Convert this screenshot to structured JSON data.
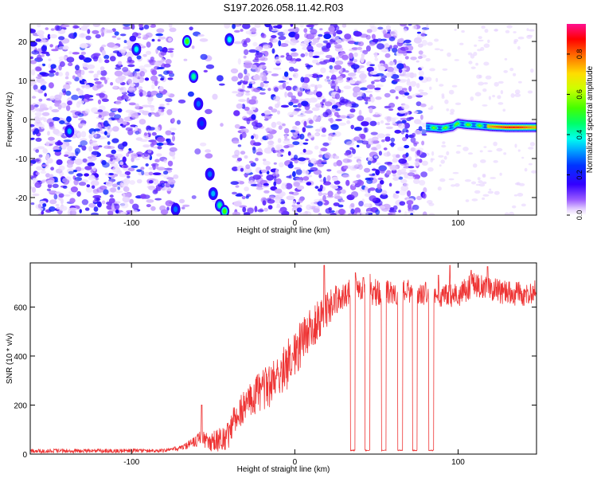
{
  "title": "S197.2026.058.11.42.R03",
  "chart_data": [
    {
      "type": "heatmap",
      "xlabel": "Height of straight line (km)",
      "ylabel": "Frequency (Hz)",
      "xlim": [
        -162,
        148
      ],
      "ylim": [
        -24.5,
        24.5
      ],
      "x_ticks": [
        -100,
        0,
        100
      ],
      "y_ticks": [
        -20,
        -10,
        0,
        10,
        20
      ],
      "x_tick_labels": [
        "-100",
        "0",
        "100"
      ],
      "y_tick_labels": [
        "-20",
        "-10",
        "0",
        "10",
        "20"
      ],
      "colorbar": {
        "label": "Normalized spectral amplitude",
        "range": [
          0,
          0.95
        ],
        "ticks": [
          0,
          0.2,
          0.4,
          0.6,
          0.8
        ],
        "tick_labels": [
          "0.0",
          "0.2",
          "0.4",
          "0.6",
          "0.8"
        ]
      },
      "blank_band_x": [
        -74,
        -37
      ],
      "slanted_streak": [
        {
          "x": -66,
          "y": 20,
          "v": 0.55
        },
        {
          "x": -62,
          "y": 11,
          "v": 0.45
        },
        {
          "x": -59,
          "y": 4,
          "v": 0.3
        },
        {
          "x": -57,
          "y": -1,
          "v": 0.25
        },
        {
          "x": -52,
          "y": -14,
          "v": 0.3
        },
        {
          "x": -50,
          "y": -19,
          "v": 0.35
        },
        {
          "x": -46,
          "y": -22,
          "v": 0.45
        },
        {
          "x": -43,
          "y": -23.5,
          "v": 0.55
        }
      ],
      "hotspots": [
        {
          "x": -97,
          "y": 18,
          "v": 0.4
        },
        {
          "x": -138,
          "y": -3,
          "v": 0.35
        },
        {
          "x": -40,
          "y": 20.5,
          "v": 0.4
        },
        {
          "x": -73,
          "y": -23,
          "v": 0.3
        }
      ],
      "tone_line": {
        "x_start": 80,
        "x_end": 148,
        "points": [
          {
            "x": 82,
            "y": -2
          },
          {
            "x": 90,
            "y": -2.3
          },
          {
            "x": 97,
            "y": -1.8
          },
          {
            "x": 100,
            "y": -1
          },
          {
            "x": 105,
            "y": -1.3
          },
          {
            "x": 112,
            "y": -1.5
          },
          {
            "x": 120,
            "y": -1.8
          },
          {
            "x": 130,
            "y": -2
          },
          {
            "x": 148,
            "y": -2
          }
        ],
        "peak_x_range": [
          118,
          148
        ],
        "peak_value": 0.9
      }
    },
    {
      "type": "line",
      "xlabel": "Height of straight line (km)",
      "ylabel": "SNR (10 * v/v)",
      "xlim": [
        -162,
        148
      ],
      "ylim": [
        0,
        780
      ],
      "x_ticks": [
        -100,
        0,
        100
      ],
      "y_ticks": [
        0,
        200,
        400,
        600
      ],
      "x_tick_labels": [
        "-100",
        "0",
        "100"
      ],
      "y_tick_labels": [
        "0",
        "200",
        "400",
        "600"
      ],
      "color": "#ee3333",
      "envelope": [
        {
          "x": -162,
          "y": 15
        },
        {
          "x": -80,
          "y": 15
        },
        {
          "x": -68,
          "y": 30
        },
        {
          "x": -58,
          "y": 70
        },
        {
          "x": -50,
          "y": 60
        },
        {
          "x": -42,
          "y": 70
        },
        {
          "x": -35,
          "y": 180
        },
        {
          "x": -25,
          "y": 250
        },
        {
          "x": -15,
          "y": 300
        },
        {
          "x": -5,
          "y": 380
        },
        {
          "x": 5,
          "y": 480
        },
        {
          "x": 15,
          "y": 570
        },
        {
          "x": 25,
          "y": 640
        },
        {
          "x": 35,
          "y": 680
        },
        {
          "x": 50,
          "y": 670
        },
        {
          "x": 70,
          "y": 670
        },
        {
          "x": 90,
          "y": 650
        },
        {
          "x": 100,
          "y": 660
        },
        {
          "x": 110,
          "y": 700
        },
        {
          "x": 120,
          "y": 680
        },
        {
          "x": 140,
          "y": 660
        },
        {
          "x": 148,
          "y": 680
        }
      ],
      "noise_amplitude": [
        {
          "x": -162,
          "y": 12
        },
        {
          "x": -70,
          "y": 12
        },
        {
          "x": -40,
          "y": 90
        },
        {
          "x": 0,
          "y": 150
        },
        {
          "x": 30,
          "y": 80
        },
        {
          "x": 148,
          "y": 70
        }
      ],
      "spikes": [
        {
          "x": -57,
          "y": 200
        },
        {
          "x": 18,
          "y": 770
        },
        {
          "x": 37,
          "y": 740
        },
        {
          "x": 42,
          "y": 720
        },
        {
          "x": 46,
          "y": 735
        },
        {
          "x": 88,
          "y": 730
        },
        {
          "x": 95,
          "y": 770
        },
        {
          "x": 108,
          "y": 750
        },
        {
          "x": 118,
          "y": 765
        }
      ],
      "dropouts": [
        {
          "x_start": 34,
          "x_end": 37,
          "y": 15
        },
        {
          "x_start": 43,
          "x_end": 46,
          "y": 15
        },
        {
          "x_start": 53,
          "x_end": 56,
          "y": 15
        },
        {
          "x_start": 63,
          "x_end": 66,
          "y": 15
        },
        {
          "x_start": 72,
          "x_end": 75,
          "y": 15
        },
        {
          "x_start": 82,
          "x_end": 85,
          "y": 15
        }
      ]
    }
  ]
}
